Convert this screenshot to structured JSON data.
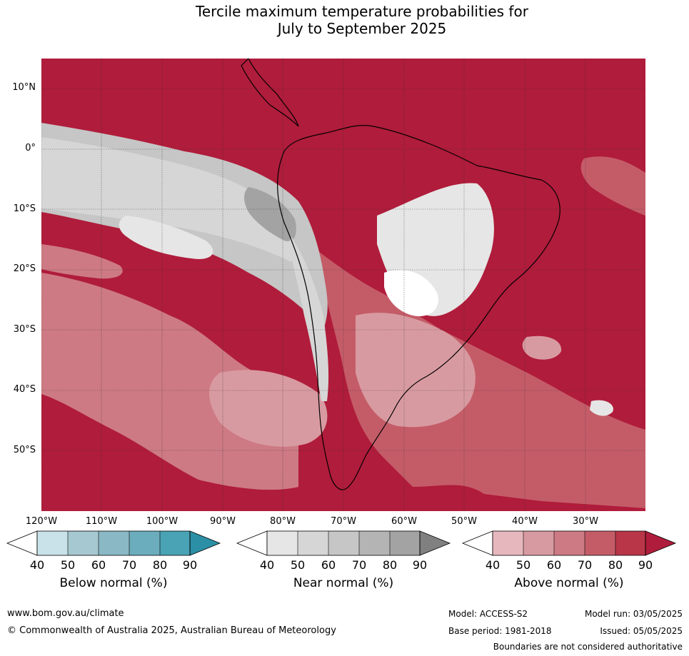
{
  "title_line1": "Tercile maximum temperature probabilities for",
  "title_line2": "July to September 2025",
  "lat_labels": [
    "10°N",
    "0°",
    "10°S",
    "20°S",
    "30°S",
    "40°S",
    "50°S"
  ],
  "lon_labels": [
    "120°W",
    "110°W",
    "100°W",
    "90°W",
    "80°W",
    "70°W",
    "60°W",
    "50°W",
    "40°W",
    "30°W"
  ],
  "legends": {
    "below": {
      "label": "Below normal (%)",
      "ticks": [
        "40",
        "50",
        "60",
        "70",
        "80",
        "90"
      ],
      "colors": [
        "#ffffff",
        "#c9e1e8",
        "#a6c8d0",
        "#8ab8c5",
        "#6badbd",
        "#49a3b5",
        "#2b8fa5"
      ]
    },
    "near": {
      "label": "Near normal (%)",
      "ticks": [
        "40",
        "50",
        "60",
        "70",
        "80",
        "90"
      ],
      "colors": [
        "#ffffff",
        "#e6e6e6",
        "#d6d6d6",
        "#c6c6c6",
        "#b4b4b4",
        "#a3a3a3",
        "#808080"
      ]
    },
    "above": {
      "label": "Above normal (%)",
      "ticks": [
        "40",
        "50",
        "60",
        "70",
        "80",
        "90"
      ],
      "colors": [
        "#ffffff",
        "#e6b8bd",
        "#d89aa1",
        "#cd7a84",
        "#c45c68",
        "#b93649",
        "#b01c3b"
      ]
    }
  },
  "footer": {
    "website": "www.bom.gov.au/climate",
    "copyright": "© Commonwealth of Australia 2025, Australian Bureau of Meteorology",
    "model": "Model: ACCESS-S2",
    "model_run": "Model run: 03/05/2025",
    "base_period": "Base period: 1981-2018",
    "issued": "Issued: 05/05/2025",
    "disclaimer": "Boundaries are not considered authoritative"
  }
}
